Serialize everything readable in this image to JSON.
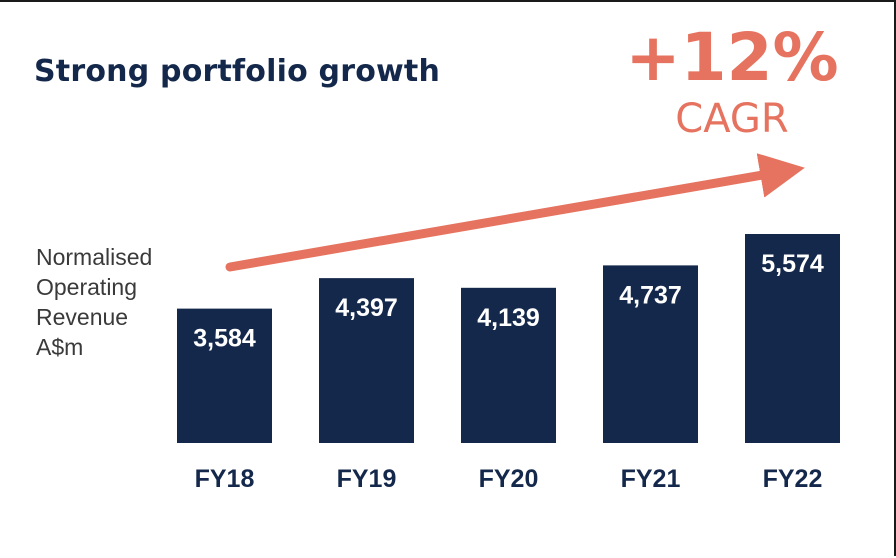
{
  "title": "Strong portfolio growth",
  "cagr": {
    "value": "+12%",
    "label": "CAGR",
    "color": "#e5735f"
  },
  "chart_data": {
    "type": "bar",
    "title": "Strong portfolio growth",
    "ylabel_lines": [
      "Normalised",
      "Operating",
      "Revenue",
      "A$m"
    ],
    "xlabel": "",
    "categories": [
      "FY18",
      "FY19",
      "FY20",
      "FY21",
      "FY22"
    ],
    "values": [
      3584,
      4397,
      4139,
      4737,
      5574
    ],
    "value_labels": [
      "3,584",
      "4,397",
      "4,139",
      "4,737",
      "5,574"
    ],
    "bar_color": "#14284b",
    "label_color": "#ffffff",
    "tick_color": "#14284b",
    "ylim": [
      0,
      5574
    ],
    "grid": false,
    "legend": "none"
  }
}
